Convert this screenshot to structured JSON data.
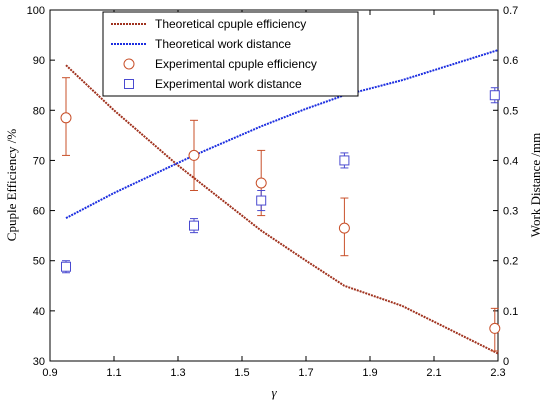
{
  "chart_data": {
    "type": "line",
    "xlabel": "γ",
    "ylabel_left": "Cpuple Efficiency /%",
    "ylabel_right": "Work Distance /mm",
    "xlim": [
      0.9,
      2.3
    ],
    "ylim_left": [
      30,
      100
    ],
    "ylim_right": [
      0,
      0.7
    ],
    "x_ticks": [
      "0.9",
      "1.1",
      "1.3",
      "1.5",
      "1.7",
      "1.9",
      "2.1",
      "2.3"
    ],
    "y_left_ticks": [
      "30",
      "40",
      "50",
      "60",
      "70",
      "80",
      "90",
      "100"
    ],
    "y_right_ticks": [
      "0",
      "0.1",
      "0.2",
      "0.3",
      "0.4",
      "0.5",
      "0.6",
      "0.7"
    ],
    "grid": false,
    "legend_position": "top-center",
    "series": [
      {
        "name": "Theoretical cpuple efficiency",
        "kind": "line",
        "axis": "left",
        "color": "#a0321e",
        "x": [
          0.95,
          1.1,
          1.3,
          1.35,
          1.56,
          1.7,
          1.82,
          2.0,
          2.3
        ],
        "y": [
          89,
          80,
          69,
          66.5,
          56,
          50,
          45,
          41,
          31.5
        ]
      },
      {
        "name": "Theoretical work distance",
        "kind": "line",
        "axis": "right",
        "color": "#1c2ee0",
        "x": [
          0.95,
          1.1,
          1.3,
          1.35,
          1.56,
          1.7,
          1.82,
          2.0,
          2.3
        ],
        "y": [
          0.285,
          0.335,
          0.395,
          0.41,
          0.468,
          0.503,
          0.53,
          0.56,
          0.62
        ]
      },
      {
        "name": "Experimental cpuple efficiency",
        "kind": "scatter",
        "marker": "circle",
        "axis": "left",
        "color": "#c8502a",
        "x": [
          0.95,
          1.35,
          1.56,
          1.82,
          2.29
        ],
        "y": [
          78.5,
          71,
          65.5,
          56.5,
          36.5
        ],
        "err_low": [
          71,
          64,
          59,
          51,
          32
        ],
        "err_high": [
          86.5,
          78,
          72,
          62.5,
          40.5
        ]
      },
      {
        "name": "Experimental work distance",
        "kind": "scatter",
        "marker": "square",
        "axis": "right",
        "color": "#4a4ad0",
        "x": [
          0.95,
          1.35,
          1.56,
          1.82,
          2.29
        ],
        "y": [
          0.188,
          0.27,
          0.32,
          0.4,
          0.53
        ],
        "err_low": [
          0.176,
          0.256,
          0.3,
          0.385,
          0.515
        ],
        "err_high": [
          0.2,
          0.284,
          0.34,
          0.415,
          0.545
        ]
      }
    ]
  }
}
